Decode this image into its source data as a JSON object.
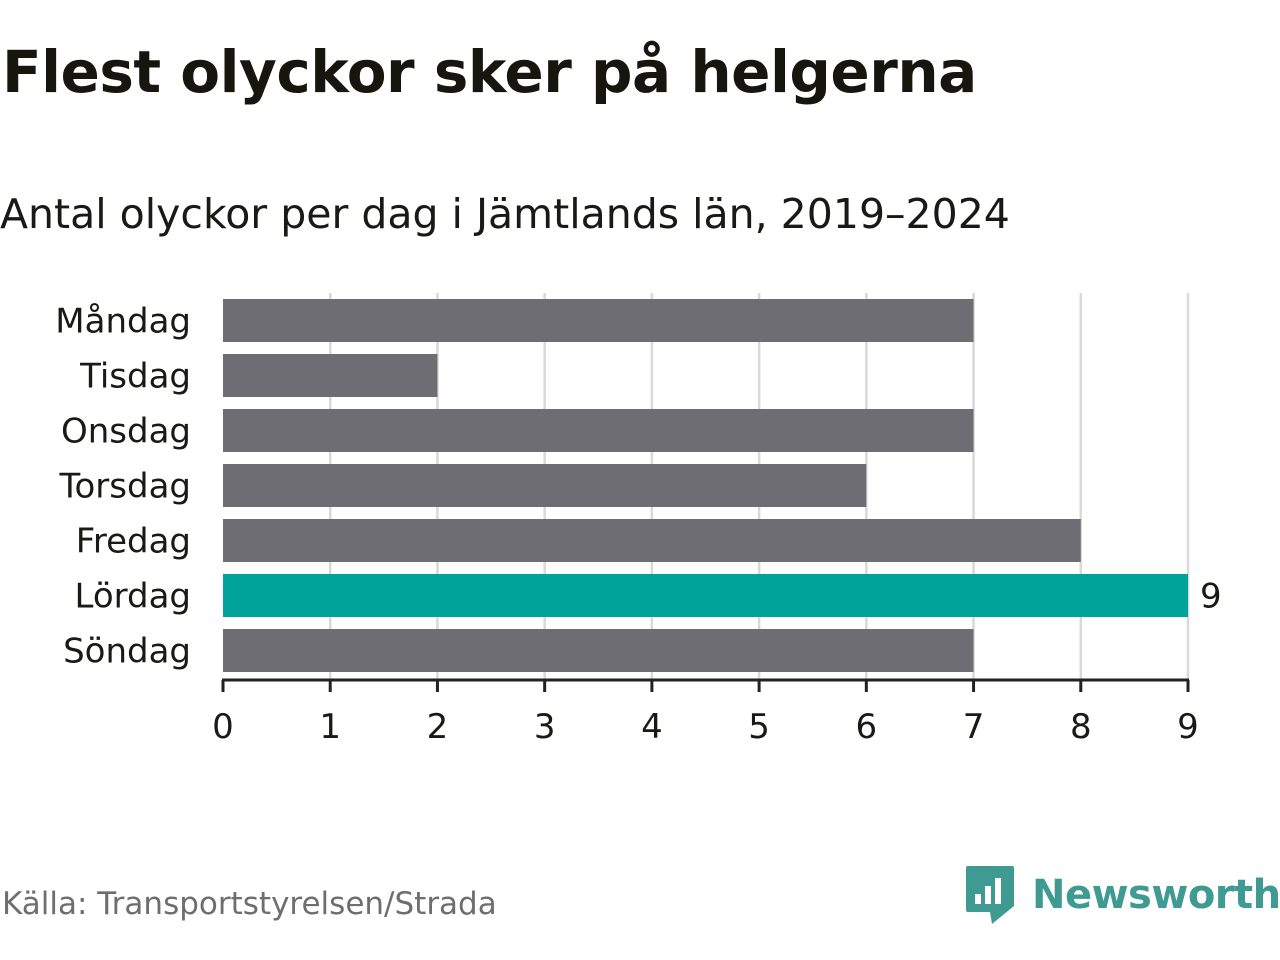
{
  "title": "Flest olyckor sker på helgerna",
  "subtitle": "Antal olyckor per dag i Jämtlands län, 2019–2024",
  "source": "Källa: Transportstyrelsen/Strada",
  "brand": {
    "name": "Newsworthy",
    "icon": "newsworthy-logo-icon",
    "color": "#3f9b92"
  },
  "colors": {
    "default_bar": "#6e6d74",
    "highlight_bar": "#00a39a",
    "grid": "#d9d9d9",
    "axis": "#222222"
  },
  "chart_data": {
    "type": "bar",
    "orientation": "horizontal",
    "categories": [
      "Måndag",
      "Tisdag",
      "Onsdag",
      "Torsdag",
      "Fredag",
      "Lördag",
      "Söndag"
    ],
    "values": [
      7,
      2,
      7,
      6,
      8,
      9,
      7
    ],
    "highlight": "Lördag",
    "data_labels": {
      "Lördag": "9"
    },
    "xlim": [
      0,
      9
    ],
    "xticks": [
      0,
      1,
      2,
      3,
      4,
      5,
      6,
      7,
      8,
      9
    ],
    "grid": true,
    "legend": "none"
  }
}
